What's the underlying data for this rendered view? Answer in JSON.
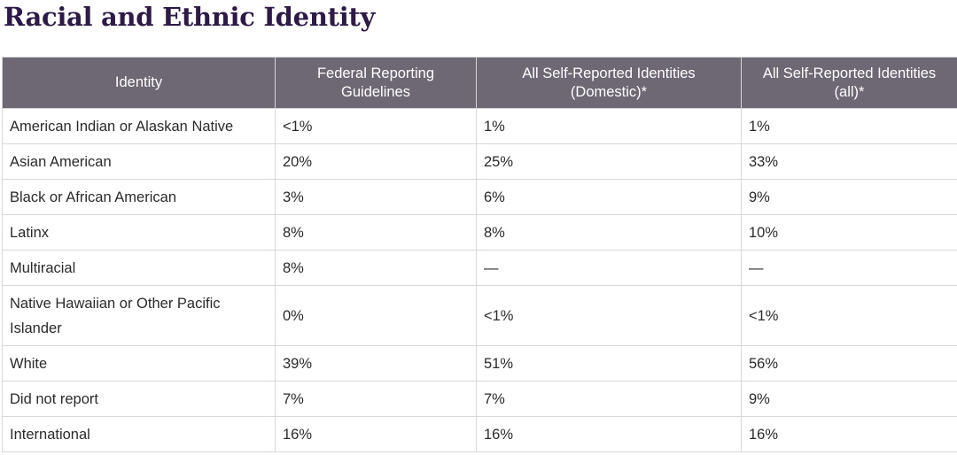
{
  "page_title": "Racial and Ethnic Identity",
  "table": {
    "headers": [
      "Identity",
      "Federal Reporting Guidelines",
      "All Self-Reported Identities (Domestic)*",
      "All Self-Reported Identities (all)*"
    ],
    "rows": [
      [
        "American Indian or Alaskan Native",
        "<1%",
        "1%",
        "1%"
      ],
      [
        "Asian American",
        "20%",
        "25%",
        "33%"
      ],
      [
        "Black or African American",
        "3%",
        "6%",
        "9%"
      ],
      [
        "Latinx",
        "8%",
        "8%",
        "10%"
      ],
      [
        "Multiracial",
        "8%",
        "—",
        "—"
      ],
      [
        "Native Hawaiian or Other Pacific Islander",
        "0%",
        "<1%",
        "<1%"
      ],
      [
        "White",
        "39%",
        "51%",
        "56%"
      ],
      [
        "Did not report",
        "7%",
        "7%",
        "9%"
      ],
      [
        "International",
        "16%",
        "16%",
        "16%"
      ]
    ]
  },
  "colors": {
    "title": "#2e1a47",
    "header_bg": "#6e6875",
    "header_text": "#ffffff",
    "border": "#d9d9d9"
  }
}
